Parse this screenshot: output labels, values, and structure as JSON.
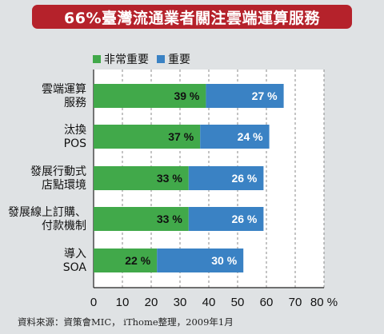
{
  "title": "66%臺灣流通業者關注雲端運算服務",
  "source": "資料來源：資策會MIC， iThome整理，2009年1月",
  "colors": {
    "important_very": "#41a94a",
    "important": "#3a82c4",
    "title_bg": "#b5222b"
  },
  "chart_data": {
    "type": "bar",
    "orientation": "horizontal",
    "stacked": true,
    "categories": [
      [
        "雲端運算",
        "服務"
      ],
      [
        "汰換",
        "POS"
      ],
      [
        "發展行動式",
        "店點環境"
      ],
      [
        "發展線上訂購、",
        "付款機制"
      ],
      [
        "導入",
        "SOA"
      ]
    ],
    "series": [
      {
        "name": "非常重要",
        "values": [
          39,
          37,
          33,
          33,
          22
        ]
      },
      {
        "name": "重要",
        "values": [
          27,
          24,
          26,
          26,
          30
        ]
      }
    ],
    "value_suffix": "%",
    "xlim": [
      0,
      80
    ],
    "xticks": [
      0,
      10,
      20,
      30,
      40,
      50,
      60,
      70,
      80
    ],
    "xtick_last_suffix": "%",
    "grid": "vertical-dashed",
    "legend_position": "top-left"
  }
}
